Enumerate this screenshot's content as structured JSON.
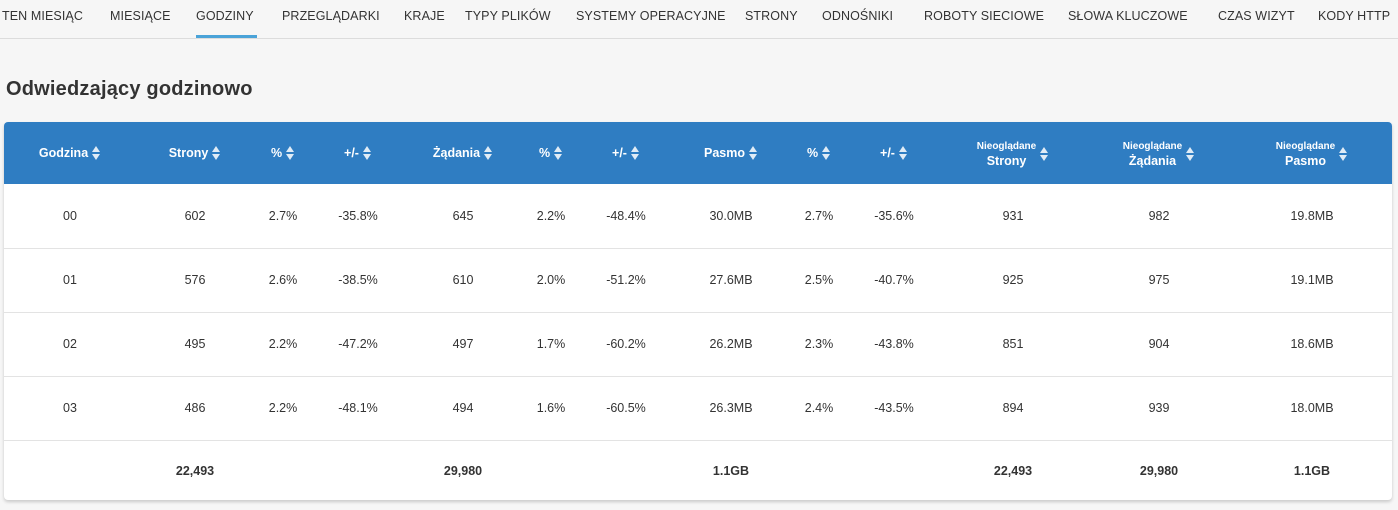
{
  "tabs": [
    {
      "label": "TEN MIESIĄC",
      "active": false
    },
    {
      "label": "MIESIĄCE",
      "active": false
    },
    {
      "label": "GODZINY",
      "active": true
    },
    {
      "label": "PRZEGLĄDARKI",
      "active": false
    },
    {
      "label": "KRAJE",
      "active": false
    },
    {
      "label": "TYPY PLIKÓW",
      "active": false
    },
    {
      "label": "SYSTEMY OPERACYJNE",
      "active": false
    },
    {
      "label": "STRONY",
      "active": false
    },
    {
      "label": "ODNOŚNIKI",
      "active": false
    },
    {
      "label": "ROBOTY SIECIOWE",
      "active": false
    },
    {
      "label": "SŁOWA KLUCZOWE",
      "active": false
    },
    {
      "label": "CZAS WIZYT",
      "active": false
    },
    {
      "label": "KODY HTTP",
      "active": false
    }
  ],
  "accent_color": "#4aa3d8",
  "header_color": "#2f7dc2",
  "page_title": "Odwiedzający godzinowo",
  "table": {
    "columns": [
      {
        "label": "Godzina"
      },
      {
        "label": "Strony"
      },
      {
        "label": "%"
      },
      {
        "label": "+/-"
      },
      {
        "label": "Żądania"
      },
      {
        "label": "%"
      },
      {
        "label": "+/-"
      },
      {
        "label": "Pasmo"
      },
      {
        "label": "%"
      },
      {
        "label": "+/-"
      },
      {
        "small": "Nieoglądane",
        "label": "Strony"
      },
      {
        "small": "Nieoglądane",
        "label": "Żądania"
      },
      {
        "small": "Nieoglądane",
        "label": "Pasmo"
      }
    ],
    "rows": [
      [
        "00",
        "602",
        "2.7%",
        "-35.8%",
        "645",
        "2.2%",
        "-48.4%",
        "30.0MB",
        "2.7%",
        "-35.6%",
        "931",
        "982",
        "19.8MB"
      ],
      [
        "01",
        "576",
        "2.6%",
        "-38.5%",
        "610",
        "2.0%",
        "-51.2%",
        "27.6MB",
        "2.5%",
        "-40.7%",
        "925",
        "975",
        "19.1MB"
      ],
      [
        "02",
        "495",
        "2.2%",
        "-47.2%",
        "497",
        "1.7%",
        "-60.2%",
        "26.2MB",
        "2.3%",
        "-43.8%",
        "851",
        "904",
        "18.6MB"
      ],
      [
        "03",
        "486",
        "2.2%",
        "-48.1%",
        "494",
        "1.6%",
        "-60.5%",
        "26.3MB",
        "2.4%",
        "-43.5%",
        "894",
        "939",
        "18.0MB"
      ]
    ],
    "totals": [
      "",
      "22,493",
      "",
      "",
      "29,980",
      "",
      "",
      "1.1GB",
      "",
      "",
      "22,493",
      "29,980",
      "1.1GB"
    ]
  }
}
